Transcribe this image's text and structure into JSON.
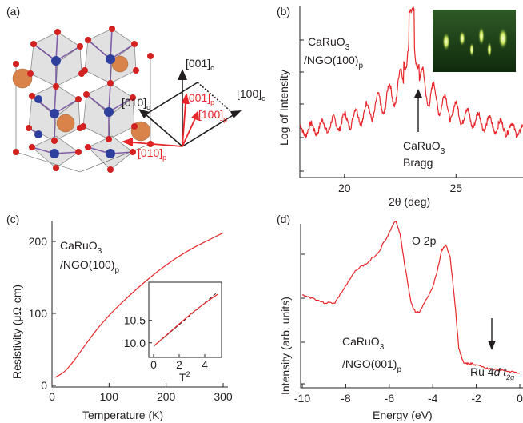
{
  "figure": {
    "panel_labels": [
      "(a)",
      "(b)",
      "(c)",
      "(d)"
    ]
  },
  "panel_a": {
    "axes_black": [
      "[001]",
      "[010]",
      "[100]"
    ],
    "axes_black_sub": "o",
    "axes_red": [
      "[001]",
      "[100]",
      "[010]"
    ],
    "axes_red_sub": "p",
    "colors": {
      "black": "#231f20",
      "red": "#e8262b",
      "octahedron": "#bdbdbd",
      "ru": "#2f3f9c",
      "o": "#d32020",
      "ca": "#d9834a"
    }
  },
  "chart_data": [
    {
      "id": "b",
      "type": "line",
      "title_lines": [
        "CaRuO",
        "/NGO(100)"
      ],
      "title_sub": [
        "3",
        "p"
      ],
      "xlabel": "2θ (deg)",
      "ylabel": "Log of Intensity",
      "xlim": [
        18,
        28
      ],
      "xticks": [
        20,
        25
      ],
      "annotation_lines": [
        "CaRuO",
        "Bragg"
      ],
      "annotation_sub": "3",
      "bragg_peak_x": 23.0,
      "series_color": "#e8262b"
    },
    {
      "id": "c",
      "type": "line",
      "title_lines": [
        "CaRuO",
        "/NGO(100)"
      ],
      "title_sub": [
        "3",
        "p"
      ],
      "xlabel": "Temperature (K)",
      "ylabel": "Resistivity (μΩ-cm)",
      "xlim": [
        0,
        300
      ],
      "ylim": [
        0,
        220
      ],
      "xticks": [
        0,
        100,
        200,
        300
      ],
      "yticks": [
        0,
        100,
        200
      ],
      "series_color": "#e8262b",
      "x": [
        5,
        10,
        20,
        30,
        40,
        50,
        60,
        80,
        100,
        120,
        150,
        180,
        200,
        220,
        250,
        280,
        300
      ],
      "y": [
        11,
        13,
        18,
        26,
        36,
        47,
        58,
        79,
        97,
        113,
        135,
        155,
        167,
        178,
        192,
        204,
        212
      ],
      "inset": {
        "type": "line",
        "xlabel": "T",
        "xlabel_sup": "2",
        "xlim": [
          0,
          5
        ],
        "ylim": [
          9.8,
          11.1
        ],
        "xticks": [
          0,
          2,
          4
        ],
        "yticks": [
          10.0,
          10.5
        ],
        "x": [
          0.1,
          1,
          2,
          3,
          4,
          5
        ],
        "y": [
          9.95,
          10.17,
          10.42,
          10.66,
          10.88,
          11.08
        ],
        "fit_x": [
          0,
          5
        ],
        "fit_y": [
          9.92,
          11.13
        ]
      }
    },
    {
      "id": "d",
      "type": "line",
      "xlabel": "Energy (eV)",
      "ylabel": "Intensity (arb. units)",
      "xlim": [
        -10,
        0
      ],
      "xticks": [
        -10,
        -8,
        -6,
        -4,
        -2,
        0
      ],
      "annotations": [
        "O 2p",
        "Ru 4",
        "d t"
      ],
      "annotation_sub": "2g",
      "sample_lines": [
        "CaRuO",
        "/NGO(001)"
      ],
      "sample_sub": [
        "3",
        "p"
      ],
      "series_color": "#e8262b",
      "x": [
        -10,
        -9.5,
        -9,
        -8.5,
        -8,
        -7.5,
        -7,
        -6.5,
        -6,
        -5.7,
        -5.5,
        -5.3,
        -5,
        -4.8,
        -4.6,
        -4.4,
        -4.2,
        -4,
        -3.8,
        -3.6,
        -3.4,
        -3.2,
        -3.0,
        -2.8,
        -2.6,
        -2.4,
        -2.2,
        -2.0,
        -1.5,
        -1.0,
        -0.5,
        0
      ],
      "y": [
        0.57,
        0.55,
        0.52,
        0.52,
        0.63,
        0.74,
        0.78,
        0.85,
        0.98,
        1.06,
        0.97,
        0.78,
        0.52,
        0.46,
        0.46,
        0.52,
        0.56,
        0.62,
        0.72,
        0.86,
        0.9,
        0.82,
        0.55,
        0.22,
        0.13,
        0.12,
        0.12,
        0.11,
        0.09,
        0.08,
        0.07,
        0.06
      ]
    }
  ]
}
